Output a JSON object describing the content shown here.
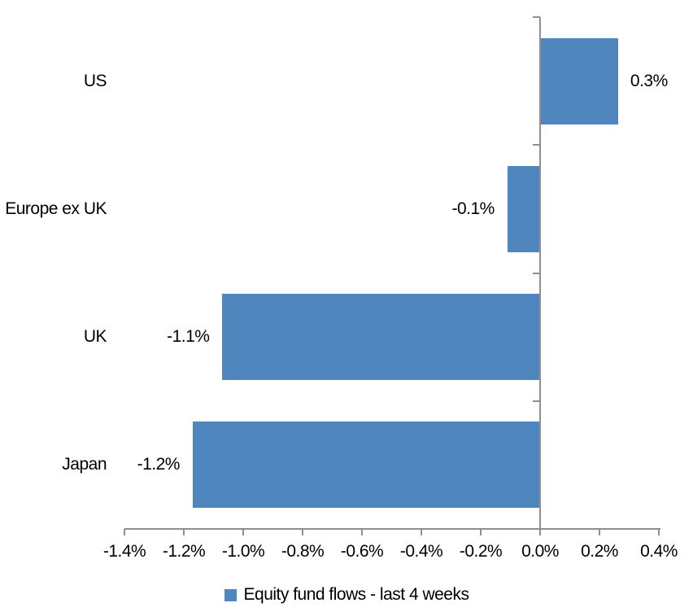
{
  "chart_data": {
    "type": "bar",
    "orientation": "horizontal",
    "title": "",
    "categories": [
      "US",
      "Europe ex UK",
      "UK",
      "Japan"
    ],
    "values": [
      0.26,
      -0.11,
      -1.07,
      -1.17
    ],
    "data_labels": [
      "0.3%",
      "-0.1%",
      "-1.1%",
      "-1.2%"
    ],
    "series_name": "Equity fund flows - last 4 weeks",
    "x_axis": {
      "min": -1.4,
      "max": 0.4,
      "tick_step": 0.2,
      "tick_labels": [
        "-1.4%",
        "-1.2%",
        "-1.0%",
        "-0.8%",
        "-0.6%",
        "-0.4%",
        "-0.2%",
        "0.0%",
        "0.2%",
        "0.4%"
      ]
    },
    "legend": {
      "position": "bottom",
      "items": [
        {
          "label": "Equity fund flows - last 4 weeks",
          "swatch": "legend-swatch-icon",
          "color": "#4e86bd"
        }
      ]
    },
    "grid": false,
    "colors": {
      "bar": "#4e86bd",
      "axis": "#8f8f8f",
      "text": "#000000",
      "background": "#ffffff"
    }
  }
}
